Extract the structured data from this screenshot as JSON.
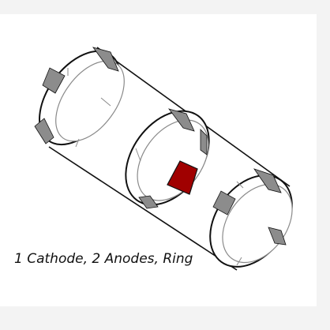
{
  "caption": "1 Cathode, 2 Anodes, Ring",
  "colors": {
    "background": "#f3f3f3",
    "panel": "#ffffff",
    "outline": "#111111",
    "inner_line": "#8a8a8a",
    "segment_fill": "#8c8c8c",
    "highlight_segment": "#a00000"
  }
}
